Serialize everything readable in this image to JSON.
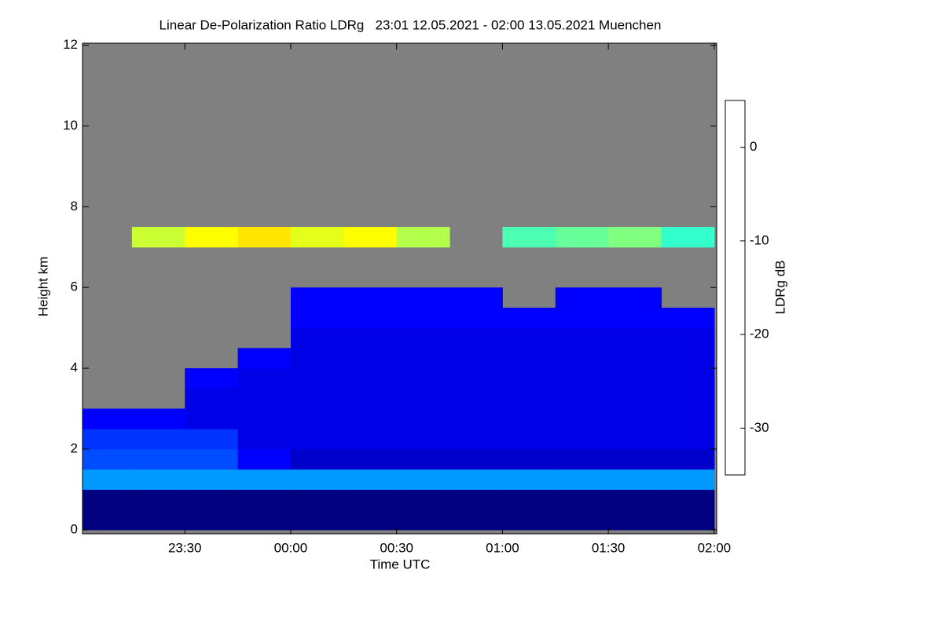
{
  "chart_data": {
    "type": "heatmap",
    "title": "Linear De-Polarization Ratio LDRg   23:01 12.05.2021 - 02:00 13.05.2021 Muenchen",
    "x_label": "Time UTC",
    "y_label": "Height km",
    "colorbar_label": "LDRg dB",
    "xlim": [
      1,
      180.7
    ],
    "ylim": [
      -0.1,
      12.05
    ],
    "zlim": [
      -35,
      5
    ],
    "xticks": [
      {
        "value": 30,
        "label": "23:30"
      },
      {
        "value": 60,
        "label": "00:00"
      },
      {
        "value": 90,
        "label": "00:30"
      },
      {
        "value": 120,
        "label": "01:00"
      },
      {
        "value": 150,
        "label": "01:30"
      },
      {
        "value": 180,
        "label": "02:00"
      }
    ],
    "yticks": [
      0,
      2,
      4,
      6,
      8,
      10,
      12
    ],
    "zticks": [
      -30,
      -20,
      -10,
      0
    ],
    "colormap": "jet",
    "no_data_color": "#808080",
    "x": [
      7.5,
      22.5,
      37.5,
      52.5,
      67.5,
      82.5,
      97.5,
      112.5,
      127.5,
      142.5,
      157.5,
      172.5
    ],
    "y": [
      0.25,
      0.75,
      1.25,
      1.75,
      2.25,
      2.75,
      3.25,
      3.75,
      4.25,
      4.75,
      5.25,
      5.75,
      6.25,
      6.75,
      7.25
    ],
    "z": [
      [
        -35,
        -35,
        -35,
        -35,
        -35,
        -35,
        -35,
        -35,
        -35,
        -35,
        -35,
        -35
      ],
      [
        -35,
        -35,
        -35,
        -35,
        -35,
        -35,
        -35,
        -35,
        -35,
        -35,
        -35,
        -35
      ],
      [
        -24,
        -24,
        -24,
        -24,
        -24,
        -24,
        -24,
        -24,
        -24,
        -24,
        -24,
        -24
      ],
      [
        -27,
        -27,
        -27,
        -30,
        -32,
        -32,
        -32,
        -32,
        -32,
        -32,
        -32,
        -32
      ],
      [
        -28,
        -28,
        -28,
        -31,
        -31,
        -31,
        -31,
        -31,
        -31,
        -31,
        -31,
        -31
      ],
      [
        -30,
        -30,
        -31,
        -31,
        -31,
        -31,
        -31,
        -31,
        -31,
        -31,
        -31,
        -31
      ],
      [
        null,
        null,
        -31,
        -31,
        -31,
        -31,
        -31,
        -31,
        -31,
        -31,
        -31,
        -31
      ],
      [
        null,
        null,
        -30,
        -31,
        -31,
        -31,
        -31,
        -31,
        -31,
        -31,
        -31,
        -31
      ],
      [
        null,
        null,
        null,
        -30,
        -31,
        -31,
        -31,
        -31,
        -31,
        -31,
        -31,
        -31
      ],
      [
        null,
        null,
        null,
        null,
        -31,
        -31,
        -31,
        -31,
        -31,
        -31,
        -31,
        -31
      ],
      [
        null,
        null,
        null,
        null,
        -30,
        -30,
        -30,
        -30,
        -30,
        -30,
        -30,
        -30
      ],
      [
        null,
        null,
        null,
        null,
        -30,
        -30,
        -30,
        -30,
        null,
        -30,
        -30,
        null
      ],
      [
        null,
        null,
        null,
        null,
        null,
        null,
        null,
        null,
        null,
        null,
        null,
        null
      ],
      [
        null,
        null,
        null,
        null,
        null,
        null,
        null,
        null,
        null,
        null,
        null,
        null
      ],
      [
        null,
        -12,
        -10,
        -9,
        -11,
        -10,
        -13,
        null,
        -17,
        -16,
        -15,
        -18
      ]
    ]
  }
}
